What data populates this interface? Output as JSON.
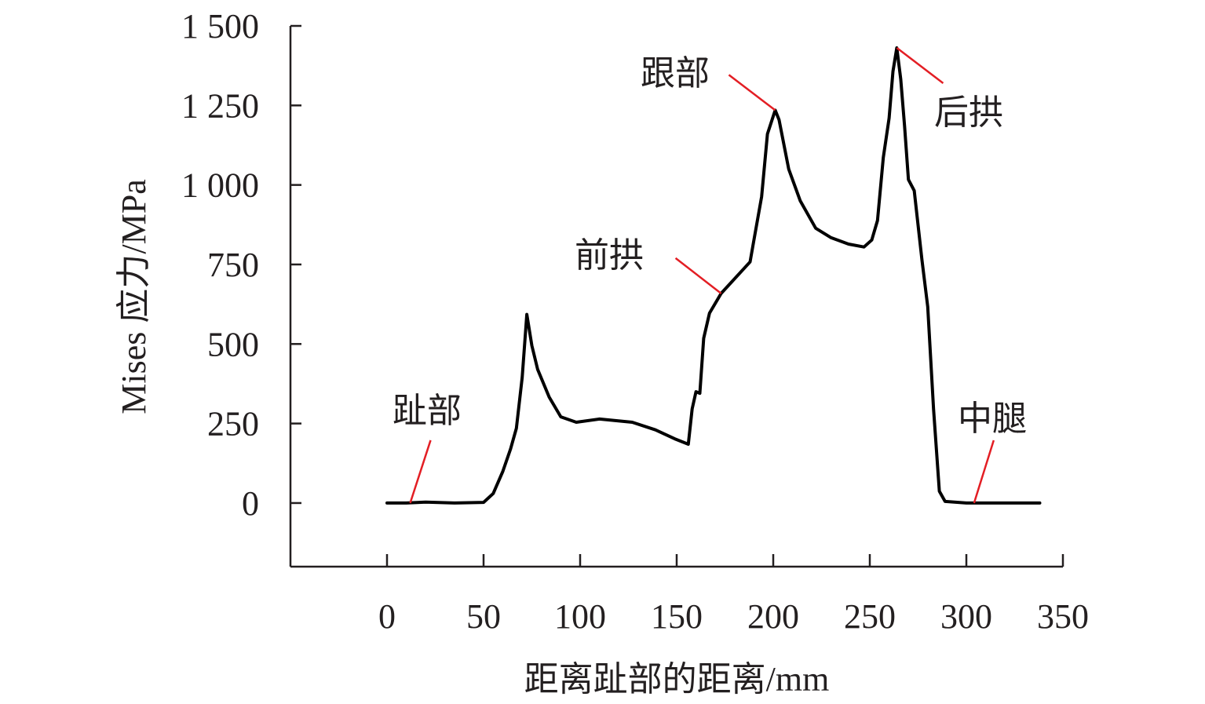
{
  "chart_data": {
    "type": "line",
    "title": "",
    "xlabel": "距离趾部的距离/mm",
    "ylabel": "Mises 应力/MPa",
    "xlim": [
      -50,
      350
    ],
    "ylim": [
      -200,
      1500
    ],
    "xticks": [
      0,
      50,
      100,
      150,
      200,
      250,
      300,
      350
    ],
    "xtick_labels": [
      "0",
      "50",
      "100",
      "150",
      "200",
      "250",
      "300",
      "350"
    ],
    "yticks": [
      0,
      250,
      500,
      750,
      1000,
      1250,
      1500
    ],
    "ytick_labels": [
      "0",
      "250",
      "500",
      "750",
      "1 000",
      "1 250",
      "1 500"
    ],
    "grid": false,
    "series": [
      {
        "name": "Mises stress",
        "color": "#000000",
        "x": [
          0,
          10,
          20,
          35,
          50,
          55,
          60,
          64,
          67,
          70,
          72.4,
          75,
          78,
          84,
          90,
          98,
          110,
          127,
          139,
          149,
          156,
          158,
          160,
          162,
          164,
          167,
          173,
          188,
          190,
          194,
          197,
          201,
          203,
          208,
          214,
          222,
          230,
          239,
          247,
          251,
          254,
          257,
          260,
          262,
          264,
          266,
          268,
          270,
          273,
          277,
          280,
          283,
          286,
          289,
          300,
          338
        ],
        "y": [
          0,
          0,
          3,
          0,
          2,
          30,
          100,
          170,
          235,
          395,
          593,
          495,
          420,
          333,
          271,
          254,
          264,
          254,
          230,
          202,
          185,
          296,
          350,
          345,
          518,
          597,
          659,
          758,
          827,
          963,
          1160,
          1235,
          1205,
          1050,
          950,
          864,
          834,
          814,
          805,
          827,
          888,
          1086,
          1210,
          1357,
          1431,
          1333,
          1185,
          1017,
          982,
          765,
          617,
          296,
          37,
          5,
          0,
          0
        ]
      }
    ],
    "annotations": [
      {
        "text": "趾部",
        "x": 12,
        "y": 0,
        "color": "#e31e24"
      },
      {
        "text": "前拱",
        "x": 173,
        "y": 659,
        "color": "#e31e24"
      },
      {
        "text": "跟部",
        "x": 201,
        "y": 1235,
        "color": "#e31e24"
      },
      {
        "text": "后拱",
        "x": 264,
        "y": 1431,
        "color": "#e31e24"
      },
      {
        "text": "中腿",
        "x": 304,
        "y": 0,
        "color": "#e31e24"
      }
    ]
  }
}
